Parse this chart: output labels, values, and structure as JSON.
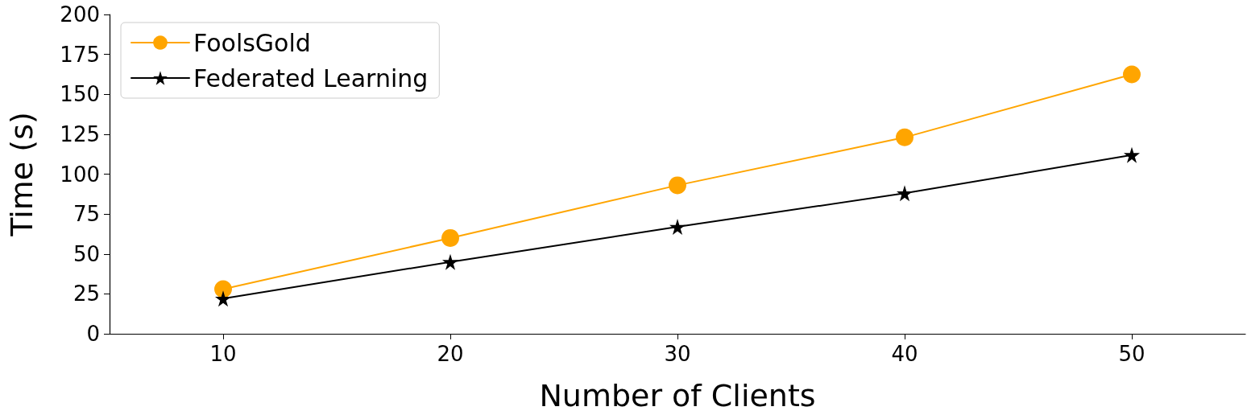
{
  "chart_data": {
    "type": "line",
    "xlabel": "Number of Clients",
    "ylabel": "Time (s)",
    "x": [
      10,
      20,
      30,
      40,
      50
    ],
    "series": [
      {
        "name": "FoolsGold",
        "color": "#ffa500",
        "marker": "circle",
        "values": [
          28,
          60,
          93,
          123,
          162.5
        ]
      },
      {
        "name": "Federated Learning",
        "color": "#000000",
        "marker": "star",
        "values": [
          22,
          45,
          67,
          88,
          112
        ]
      }
    ],
    "xlim": [
      5,
      55
    ],
    "xticks": [
      10,
      20,
      30,
      40,
      50
    ],
    "ylim": [
      0,
      200
    ],
    "yticks": [
      0,
      25,
      50,
      75,
      100,
      125,
      150,
      175,
      200
    ],
    "grid": false,
    "legend": "top left",
    "line_style": "solid"
  }
}
